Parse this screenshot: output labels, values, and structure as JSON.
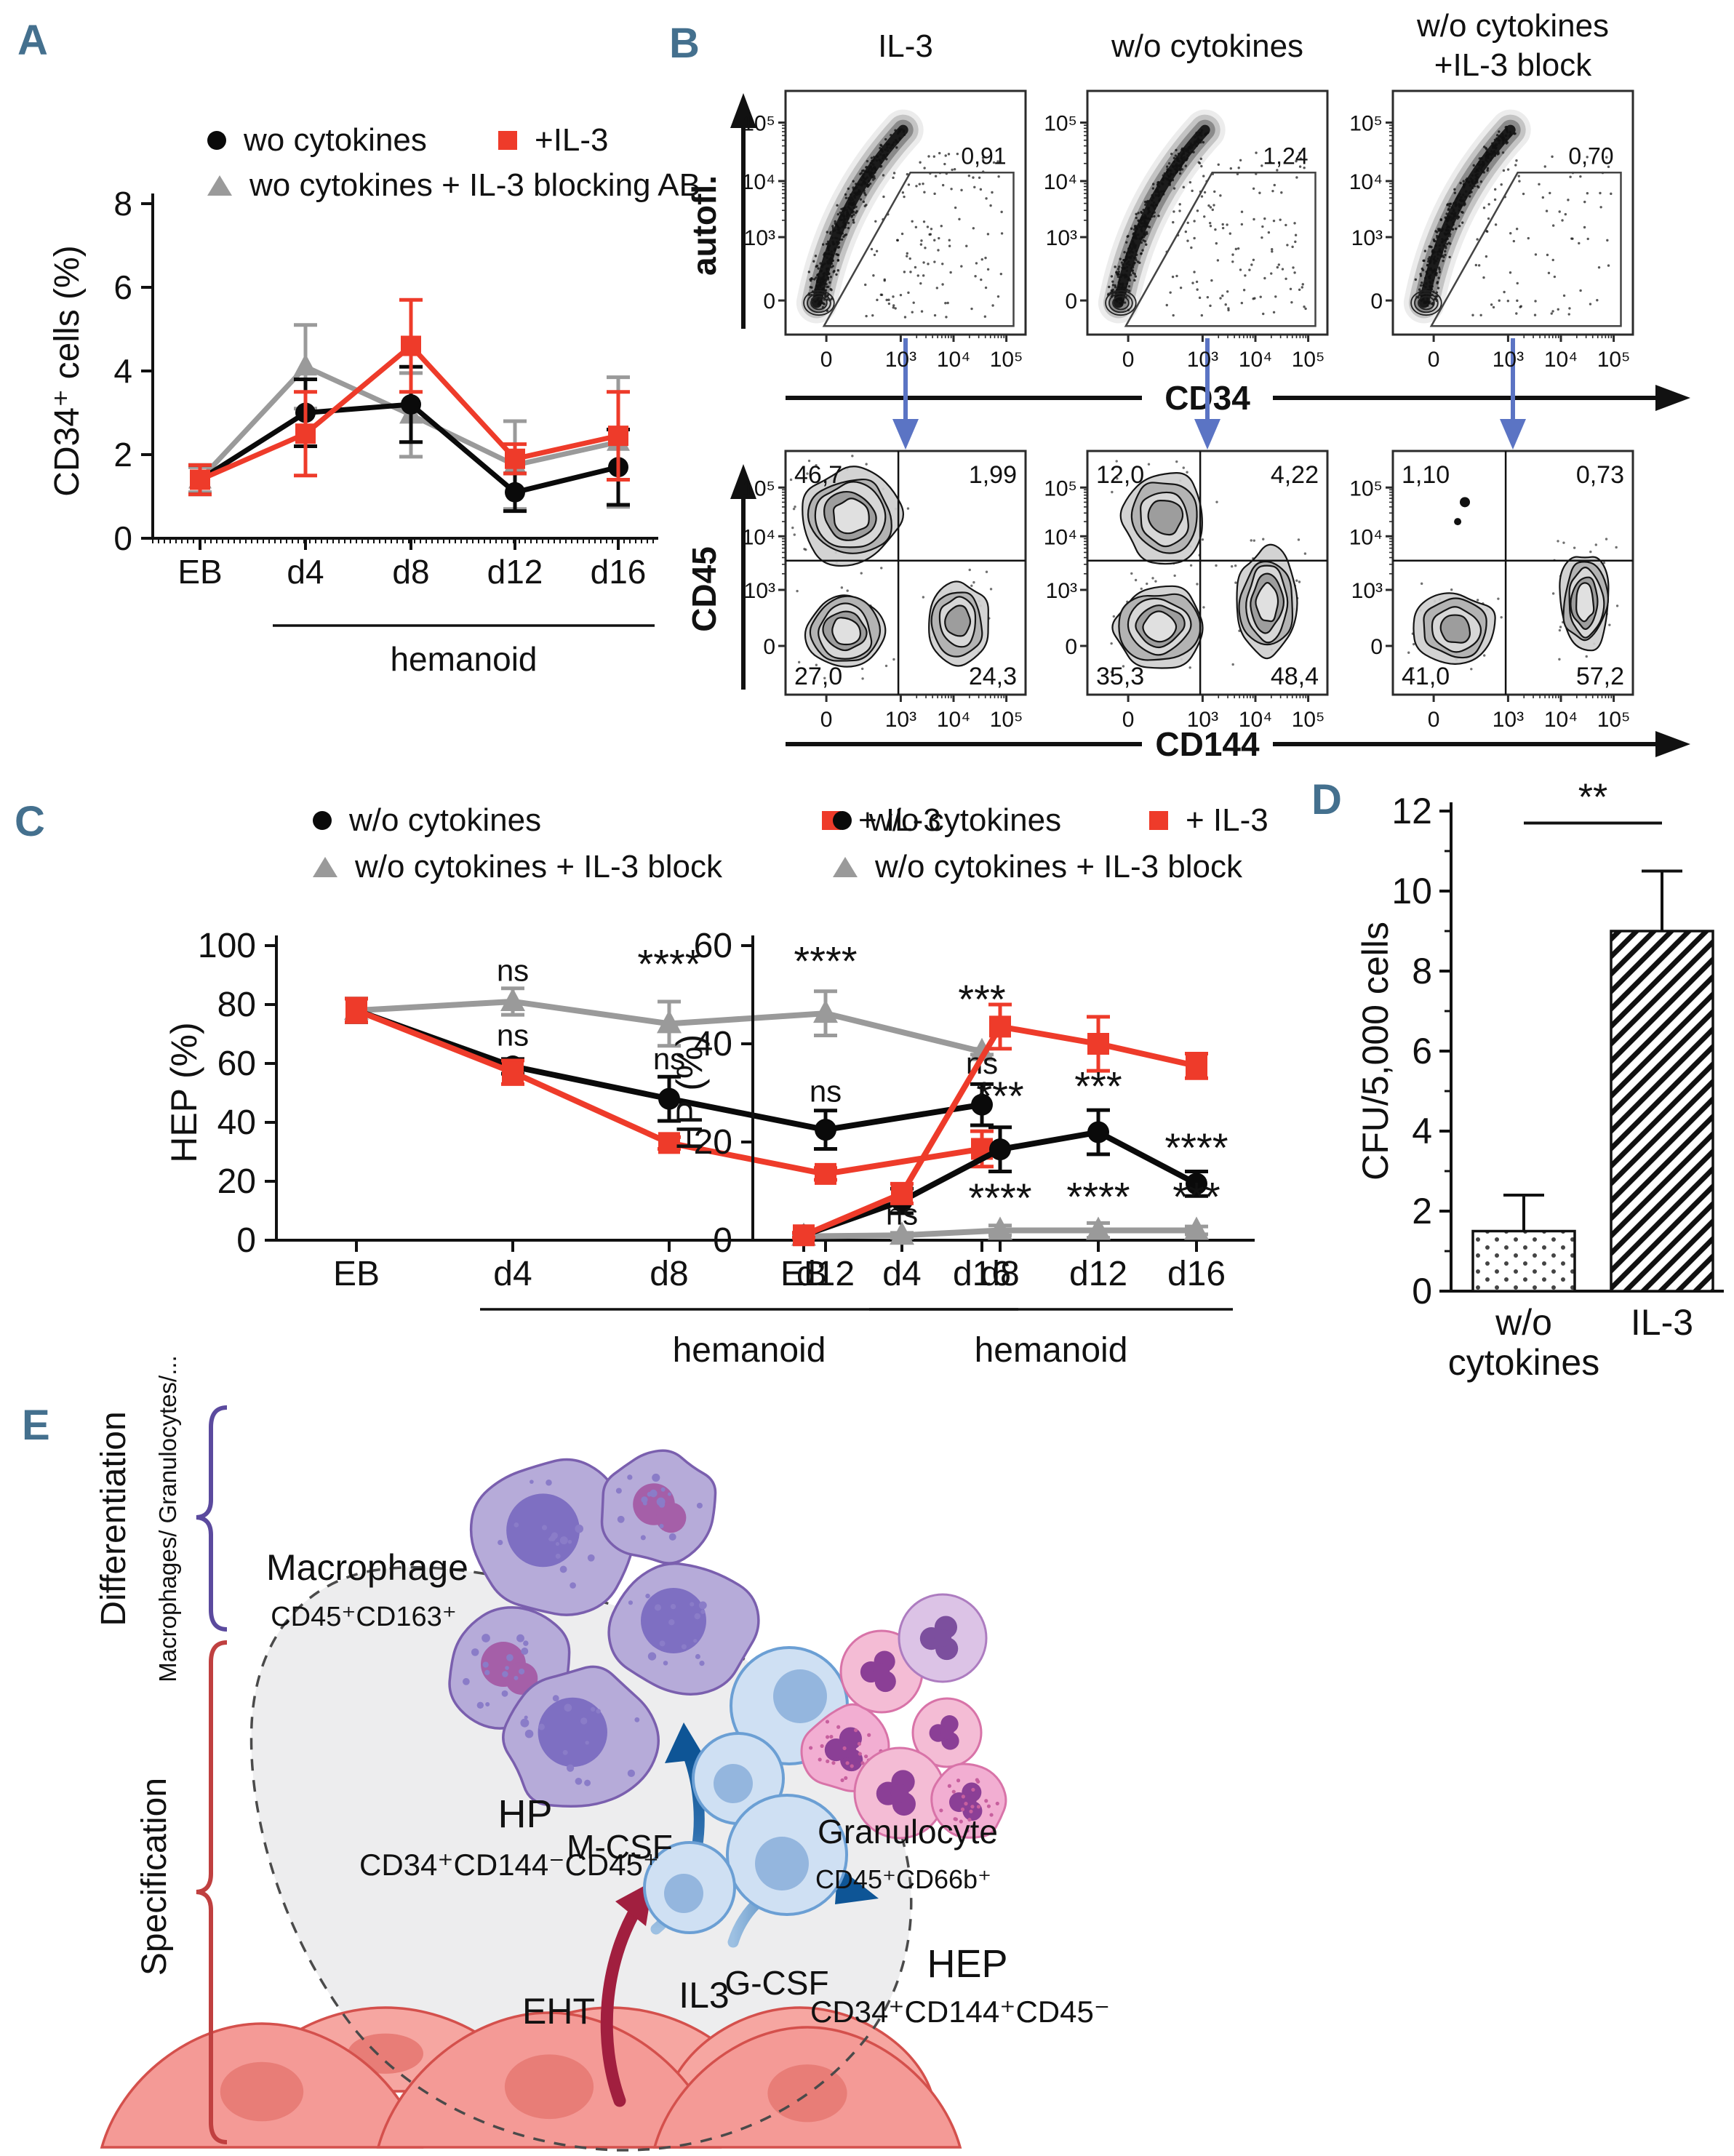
{
  "figure": {
    "bg": "#ffffff",
    "panel_label_color": "#44708e"
  },
  "panels": {
    "A": {
      "label": "A",
      "legend": [
        {
          "marker": "circle",
          "color": "#0a0a0a",
          "label": "wo cytokines"
        },
        {
          "marker": "square",
          "color": "#ee3b2a",
          "label": "+IL-3"
        },
        {
          "marker": "triangle",
          "color": "#9a9a9a",
          "label": "wo cytokines + IL-3 blocking AB"
        }
      ]
    },
    "B": {
      "label": "B",
      "titles": [
        "IL-3",
        "w/o cytokines",
        "w/o cytokines",
        "+IL-3 block"
      ],
      "top": {
        "ylabel": "autofl.",
        "xlabel": "CD34",
        "gates": [
          "0,91",
          "1,24",
          "0,70"
        ]
      },
      "bottom": {
        "ylabel": "CD45",
        "xlabel": "CD144",
        "quadrants": [
          [
            "46,7",
            "1,99",
            "27,0",
            "24,3"
          ],
          [
            "12,0",
            "4,22",
            "35,3",
            "48,4"
          ],
          [
            "1,10",
            "0,73",
            "41,0",
            "57,2"
          ]
        ]
      },
      "ticks": [
        "0",
        "10³",
        "10⁴",
        "10⁵"
      ]
    },
    "C": {
      "label": "C",
      "legend": [
        {
          "marker": "circle",
          "color": "#0a0a0a",
          "label": "w/o cytokines"
        },
        {
          "marker": "square",
          "color": "#ee3b2a",
          "label": "+ IL-3"
        },
        {
          "marker": "triangle",
          "color": "#9a9a9a",
          "label": "w/o cytokines + IL-3 block"
        }
      ]
    },
    "D": {
      "label": "D"
    },
    "E": {
      "label": "E",
      "differentiation": {
        "title": "Differentiation",
        "subtitle": "Macrophages/ Granulocytes/...",
        "color": "#7b4fa5"
      },
      "specification": {
        "title": "Specification",
        "color": "#c9302f"
      },
      "macrophage": {
        "name": "Macrophage",
        "markers": "CD45⁺CD163⁺"
      },
      "hp": {
        "name": "HP",
        "markers": "CD34⁺CD144⁻CD45⁺"
      },
      "hep": {
        "name": "HEP",
        "markers": "CD34⁺CD144⁺CD45⁻"
      },
      "granulocyte": {
        "name": "Granulocyte",
        "markers": "CD45⁺CD66b⁺"
      },
      "mcsf": "M-CSF",
      "gcsf": "G-CSF",
      "eht": "EHT",
      "il3": "IL3"
    }
  },
  "chart_data": [
    {
      "id": "A",
      "type": "line",
      "ylabel": "CD34⁺ cells (%)",
      "xlabel": "",
      "categories": [
        "EB",
        "d4",
        "d8",
        "d12",
        "d16"
      ],
      "ylim": [
        0,
        8
      ],
      "yticks": [
        0,
        2,
        4,
        6,
        8
      ],
      "group_label": "hemanoid",
      "group_span": [
        1,
        4
      ],
      "series": [
        {
          "name": "wo cytokines + IL-3 blocking AB",
          "color": "#9a9a9a",
          "marker": "triangle",
          "values": [
            1.4,
            4.1,
            2.95,
            1.75,
            2.3
          ],
          "errors": [
            0.3,
            1.0,
            1.0,
            1.05,
            1.55
          ]
        },
        {
          "name": "wo cytokines",
          "color": "#0a0a0a",
          "marker": "circle",
          "values": [
            1.4,
            3.0,
            3.2,
            1.1,
            1.7
          ],
          "errors": [
            0.35,
            0.8,
            0.9,
            0.45,
            0.9
          ]
        },
        {
          "name": "+IL-3",
          "color": "#ee3b2a",
          "marker": "square",
          "values": [
            1.4,
            2.5,
            4.6,
            1.9,
            2.45
          ],
          "errors": [
            0.35,
            1.0,
            1.1,
            0.35,
            1.05
          ]
        }
      ],
      "annotations": []
    },
    {
      "id": "C1",
      "type": "line",
      "ylabel": "HEP (%)",
      "xlabel": "",
      "categories": [
        "EB",
        "d4",
        "d8",
        "d12",
        "d16"
      ],
      "ylim": [
        0,
        100
      ],
      "yticks": [
        0,
        20,
        40,
        60,
        80,
        100
      ],
      "group_label": "hemanoid",
      "group_span": [
        1,
        4
      ],
      "series": [
        {
          "name": "w/o cytokines + IL-3 block",
          "color": "#9a9a9a",
          "marker": "triangle",
          "values": [
            78,
            81,
            73.5,
            77,
            64
          ],
          "errors": [
            4,
            4.5,
            7.5,
            7.5,
            1
          ]
        },
        {
          "name": "w/o cytokines",
          "color": "#0a0a0a",
          "marker": "circle",
          "values": [
            78,
            59,
            48,
            37.5,
            46
          ],
          "errors": [
            4,
            2.5,
            7.5,
            6.5,
            7
          ]
        },
        {
          "name": "+ IL-3",
          "color": "#ee3b2a",
          "marker": "square",
          "values": [
            78,
            57,
            33,
            22.5,
            31
          ],
          "errors": [
            4,
            4,
            2,
            2,
            6
          ]
        }
      ],
      "annotations": [
        {
          "x": 1,
          "y": 88,
          "text": "ns"
        },
        {
          "x": 2,
          "y": 89,
          "text": "****"
        },
        {
          "x": 3,
          "y": 90,
          "text": "****"
        },
        {
          "x": 4,
          "y": 77,
          "text": "***"
        },
        {
          "x": 1,
          "y": 66,
          "text": "ns"
        },
        {
          "x": 2,
          "y": 58,
          "text": "ns"
        },
        {
          "x": 3,
          "y": 47,
          "text": "ns"
        },
        {
          "x": 4,
          "y": 56.5,
          "text": "ns"
        }
      ]
    },
    {
      "id": "C2",
      "type": "line",
      "ylabel": "HP (%)",
      "xlabel": "",
      "categories": [
        "EB",
        "d4",
        "d8",
        "d12",
        "d16"
      ],
      "ylim": [
        0,
        60
      ],
      "yticks": [
        0,
        20,
        40,
        60
      ],
      "group_label": "hemanoid",
      "group_span": [
        1,
        4
      ],
      "series": [
        {
          "name": "w/o cytokines + IL-3 block",
          "color": "#9a9a9a",
          "marker": "triangle",
          "values": [
            0.8,
            1,
            2,
            2,
            2
          ],
          "errors": [
            0.3,
            0.5,
            1,
            1.5,
            0.8
          ]
        },
        {
          "name": "w/o cytokines",
          "color": "#0a0a0a",
          "marker": "circle",
          "values": [
            1,
            8,
            18.5,
            22,
            11.5
          ],
          "errors": [
            0.5,
            2.5,
            4.5,
            4.5,
            2.5
          ]
        },
        {
          "name": "+ IL-3",
          "color": "#ee3b2a",
          "marker": "square",
          "values": [
            1,
            9.5,
            43.5,
            40,
            35.5
          ],
          "errors": [
            0.5,
            2,
            4.5,
            5.5,
            2.5
          ]
        }
      ],
      "annotations": [
        {
          "x": 2,
          "y": 26.5,
          "text": "***"
        },
        {
          "x": 3,
          "y": 28.5,
          "text": "***"
        },
        {
          "x": 4,
          "y": 16,
          "text": "****"
        },
        {
          "x": 1,
          "y": 3.2,
          "text": "ns"
        },
        {
          "x": 2,
          "y": 5.8,
          "text": "****"
        },
        {
          "x": 3,
          "y": 6,
          "text": "****"
        },
        {
          "x": 4,
          "y": 6,
          "text": "***"
        }
      ]
    },
    {
      "id": "D",
      "type": "bar",
      "ylabel": "CFU/5,000 cells",
      "categories": [
        "w/o\ncytokines",
        "IL-3"
      ],
      "values": [
        1.5,
        9.0
      ],
      "errors": [
        0.9,
        1.5
      ],
      "ylim": [
        0,
        12
      ],
      "yticks": [
        0,
        2,
        4,
        6,
        8,
        10,
        12
      ],
      "patterns": [
        "dots",
        "diag"
      ],
      "significance": {
        "text": "**",
        "y": 11.7
      }
    }
  ]
}
